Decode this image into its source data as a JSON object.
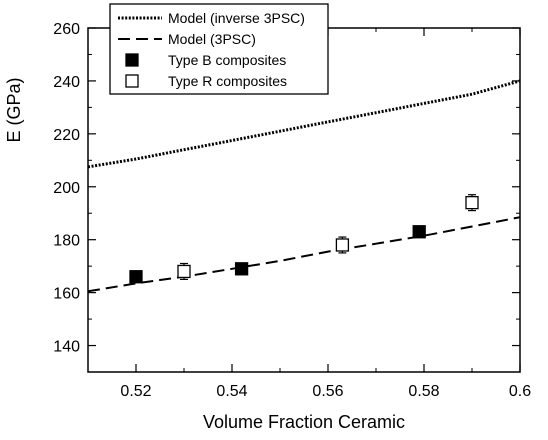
{
  "chart_data": {
    "type": "scatter",
    "xlabel": "Volume Fraction Ceramic",
    "ylabel": "E (GPa)",
    "xlim": [
      0.51,
      0.6
    ],
    "ylim": [
      130,
      260
    ],
    "xticks": [
      0.52,
      0.54,
      0.56,
      0.58,
      0.6
    ],
    "xtick_labels": [
      "0.52",
      "0.54",
      "0.56",
      "0.58",
      "0.6"
    ],
    "yticks": [
      140,
      160,
      180,
      200,
      220,
      240,
      260
    ],
    "ytick_labels": [
      "140",
      "160",
      "180",
      "200",
      "220",
      "240",
      "260"
    ],
    "grid": false,
    "legend_position": "top-center",
    "series": [
      {
        "name": "Model (inverse 3PSC)",
        "kind": "line",
        "style": "dotted",
        "x": [
          0.51,
          0.52,
          0.53,
          0.54,
          0.55,
          0.56,
          0.57,
          0.58,
          0.59,
          0.6
        ],
        "y": [
          207.5,
          210.5,
          214,
          217.5,
          221,
          224.5,
          228,
          231.5,
          235,
          240
        ]
      },
      {
        "name": "Model (3PSC)",
        "kind": "line",
        "style": "dashed",
        "x": [
          0.51,
          0.52,
          0.53,
          0.54,
          0.55,
          0.56,
          0.57,
          0.58,
          0.59,
          0.6
        ],
        "y": [
          160.5,
          163.5,
          166,
          169,
          172,
          175.5,
          178.5,
          181.5,
          185,
          188.5
        ]
      },
      {
        "name": "Type B composites",
        "kind": "points",
        "marker": "filled-square",
        "x": [
          0.52,
          0.542,
          0.579
        ],
        "y": [
          166,
          169,
          183
        ],
        "err": [
          2,
          2,
          2
        ]
      },
      {
        "name": "Type R composites",
        "kind": "points",
        "marker": "open-square",
        "x": [
          0.53,
          0.563,
          0.59
        ],
        "y": [
          168,
          178,
          194
        ],
        "err": [
          3,
          3,
          3
        ]
      }
    ]
  }
}
